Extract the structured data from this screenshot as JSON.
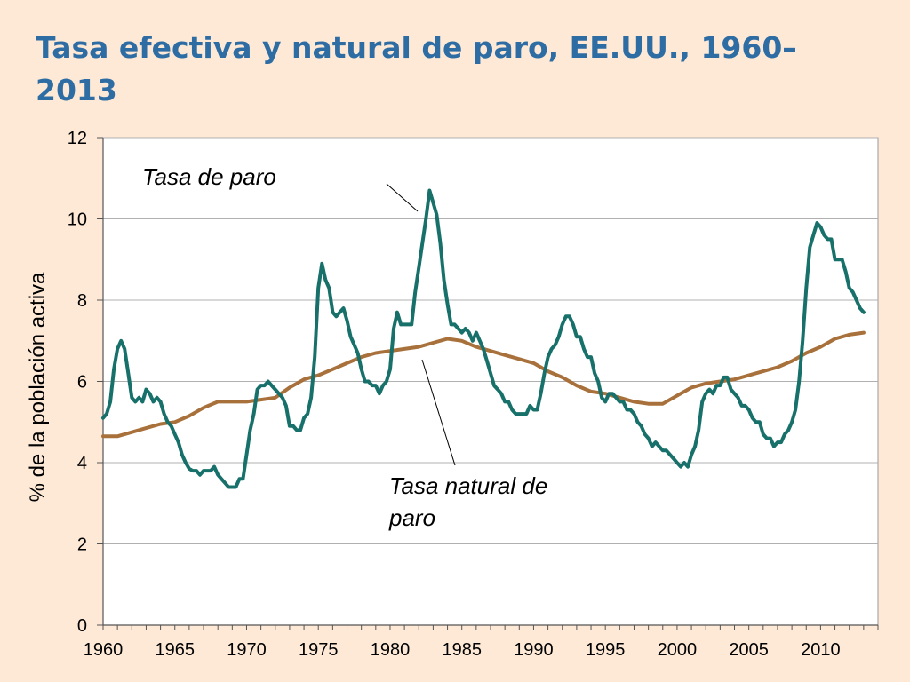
{
  "slide": {
    "title": "Tasa efectiva y natural de paro, EE.UU., 1960–2013"
  },
  "chart_data": {
    "type": "line",
    "title": "Tasa efectiva y natural de paro, EE.UU., 1960–2013",
    "ylabel": "% de la población activa",
    "xlabel": "",
    "xlim": [
      1960,
      2014
    ],
    "ylim": [
      0,
      12
    ],
    "xticks": [
      1960,
      1965,
      1970,
      1975,
      1980,
      1985,
      1990,
      1995,
      2000,
      2005,
      2010
    ],
    "yticks": [
      0,
      2,
      4,
      6,
      8,
      10,
      12
    ],
    "grid": "horizontal",
    "legend": "none",
    "colors": {
      "actual": "#17706a",
      "natural": "#a8703a",
      "grid": "#b0b0b0"
    },
    "annotations": [
      {
        "text": "Tasa de paro",
        "series": "actual"
      },
      {
        "text": "Tasa natural de paro",
        "lines": [
          "Tasa natural de",
          "paro"
        ],
        "series": "natural"
      }
    ],
    "series": [
      {
        "id": "actual",
        "name": "Tasa de paro",
        "x": [
          1960.0,
          1960.25,
          1960.5,
          1960.75,
          1961.0,
          1961.25,
          1961.5,
          1961.75,
          1962.0,
          1962.25,
          1962.5,
          1962.75,
          1963.0,
          1963.25,
          1963.5,
          1963.75,
          1964.0,
          1964.25,
          1964.5,
          1964.75,
          1965.0,
          1965.25,
          1965.5,
          1965.75,
          1966.0,
          1966.25,
          1966.5,
          1966.75,
          1967.0,
          1967.25,
          1967.5,
          1967.75,
          1968.0,
          1968.25,
          1968.5,
          1968.75,
          1969.0,
          1969.25,
          1969.5,
          1969.75,
          1970.0,
          1970.25,
          1970.5,
          1970.75,
          1971.0,
          1971.25,
          1971.5,
          1971.75,
          1972.0,
          1972.25,
          1972.5,
          1972.75,
          1973.0,
          1973.25,
          1973.5,
          1973.75,
          1974.0,
          1974.25,
          1974.5,
          1974.75,
          1975.0,
          1975.25,
          1975.5,
          1975.75,
          1976.0,
          1976.25,
          1976.5,
          1976.75,
          1977.0,
          1977.25,
          1977.5,
          1977.75,
          1978.0,
          1978.25,
          1978.5,
          1978.75,
          1979.0,
          1979.25,
          1979.5,
          1979.75,
          1980.0,
          1980.25,
          1980.5,
          1980.75,
          1981.0,
          1981.25,
          1981.5,
          1981.75,
          1982.0,
          1982.25,
          1982.5,
          1982.75,
          1983.0,
          1983.25,
          1983.5,
          1983.75,
          1984.0,
          1984.25,
          1984.5,
          1984.75,
          1985.0,
          1985.25,
          1985.5,
          1985.75,
          1986.0,
          1986.25,
          1986.5,
          1986.75,
          1987.0,
          1987.25,
          1987.5,
          1987.75,
          1988.0,
          1988.25,
          1988.5,
          1988.75,
          1989.0,
          1989.25,
          1989.5,
          1989.75,
          1990.0,
          1990.25,
          1990.5,
          1990.75,
          1991.0,
          1991.25,
          1991.5,
          1991.75,
          1992.0,
          1992.25,
          1992.5,
          1992.75,
          1993.0,
          1993.25,
          1993.5,
          1993.75,
          1994.0,
          1994.25,
          1994.5,
          1994.75,
          1995.0,
          1995.25,
          1995.5,
          1995.75,
          1996.0,
          1996.25,
          1996.5,
          1996.75,
          1997.0,
          1997.25,
          1997.5,
          1997.75,
          1998.0,
          1998.25,
          1998.5,
          1998.75,
          1999.0,
          1999.25,
          1999.5,
          1999.75,
          2000.0,
          2000.25,
          2000.5,
          2000.75,
          2001.0,
          2001.25,
          2001.5,
          2001.75,
          2002.0,
          2002.25,
          2002.5,
          2002.75,
          2003.0,
          2003.25,
          2003.5,
          2003.75,
          2004.0,
          2004.25,
          2004.5,
          2004.75,
          2005.0,
          2005.25,
          2005.5,
          2005.75,
          2006.0,
          2006.25,
          2006.5,
          2006.75,
          2007.0,
          2007.25,
          2007.5,
          2007.75,
          2008.0,
          2008.25,
          2008.5,
          2008.75,
          2009.0,
          2009.25,
          2009.5,
          2009.75,
          2010.0,
          2010.25,
          2010.5,
          2010.75,
          2011.0,
          2011.25,
          2011.5,
          2011.75,
          2012.0,
          2012.25,
          2012.5,
          2012.75,
          2013.0
        ],
        "values": [
          5.1,
          5.2,
          5.5,
          6.3,
          6.8,
          7.0,
          6.8,
          6.2,
          5.6,
          5.5,
          5.6,
          5.5,
          5.8,
          5.7,
          5.5,
          5.6,
          5.5,
          5.2,
          5.0,
          4.9,
          4.7,
          4.5,
          4.2,
          4.0,
          3.85,
          3.8,
          3.8,
          3.7,
          3.8,
          3.8,
          3.8,
          3.9,
          3.7,
          3.6,
          3.5,
          3.4,
          3.4,
          3.4,
          3.6,
          3.6,
          4.2,
          4.8,
          5.2,
          5.8,
          5.9,
          5.9,
          6.0,
          5.9,
          5.8,
          5.7,
          5.6,
          5.4,
          4.9,
          4.9,
          4.8,
          4.8,
          5.1,
          5.2,
          5.6,
          6.6,
          8.3,
          8.9,
          8.5,
          8.3,
          7.7,
          7.6,
          7.7,
          7.8,
          7.5,
          7.1,
          6.9,
          6.7,
          6.3,
          6.0,
          6.0,
          5.9,
          5.9,
          5.7,
          5.9,
          6.0,
          6.3,
          7.3,
          7.7,
          7.4,
          7.4,
          7.4,
          7.4,
          8.2,
          8.8,
          9.4,
          10.0,
          10.7,
          10.4,
          10.1,
          9.4,
          8.5,
          7.9,
          7.4,
          7.4,
          7.3,
          7.2,
          7.3,
          7.2,
          7.0,
          7.2,
          7.0,
          6.8,
          6.5,
          6.2,
          5.9,
          5.8,
          5.7,
          5.5,
          5.5,
          5.3,
          5.2,
          5.2,
          5.2,
          5.2,
          5.4,
          5.3,
          5.3,
          5.7,
          6.2,
          6.6,
          6.8,
          6.9,
          7.1,
          7.4,
          7.6,
          7.6,
          7.4,
          7.1,
          7.1,
          6.8,
          6.6,
          6.6,
          6.2,
          6.0,
          5.6,
          5.5,
          5.7,
          5.7,
          5.6,
          5.5,
          5.5,
          5.3,
          5.3,
          5.2,
          5.0,
          4.9,
          4.7,
          4.6,
          4.4,
          4.5,
          4.4,
          4.3,
          4.3,
          4.2,
          4.1,
          4.0,
          3.9,
          4.0,
          3.9,
          4.2,
          4.4,
          4.8,
          5.5,
          5.7,
          5.8,
          5.7,
          5.9,
          5.9,
          6.1,
          6.1,
          5.8,
          5.7,
          5.6,
          5.4,
          5.4,
          5.3,
          5.1,
          5.0,
          5.0,
          4.7,
          4.6,
          4.6,
          4.4,
          4.5,
          4.5,
          4.7,
          4.8,
          5.0,
          5.3,
          6.0,
          7.0,
          8.3,
          9.3,
          9.6,
          9.9,
          9.8,
          9.6,
          9.5,
          9.5,
          9.0,
          9.0,
          9.0,
          8.7,
          8.3,
          8.2,
          8.0,
          7.8,
          7.7
        ]
      },
      {
        "id": "natural",
        "name": "Tasa natural de paro",
        "x": [
          1960,
          1961,
          1962,
          1963,
          1964,
          1965,
          1966,
          1967,
          1968,
          1969,
          1970,
          1971,
          1972,
          1973,
          1974,
          1975,
          1976,
          1977,
          1978,
          1979,
          1980,
          1981,
          1982,
          1983,
          1984,
          1985,
          1986,
          1987,
          1988,
          1989,
          1990,
          1991,
          1992,
          1993,
          1994,
          1995,
          1996,
          1997,
          1998,
          1999,
          2000,
          2001,
          2002,
          2003,
          2004,
          2005,
          2006,
          2007,
          2008,
          2009,
          2010,
          2011,
          2012,
          2013
        ],
        "values": [
          4.65,
          4.65,
          4.75,
          4.85,
          4.95,
          5.0,
          5.15,
          5.35,
          5.5,
          5.5,
          5.5,
          5.55,
          5.6,
          5.85,
          6.05,
          6.15,
          6.3,
          6.45,
          6.6,
          6.7,
          6.75,
          6.8,
          6.85,
          6.95,
          7.05,
          7.0,
          6.85,
          6.75,
          6.65,
          6.55,
          6.45,
          6.25,
          6.1,
          5.9,
          5.75,
          5.7,
          5.6,
          5.5,
          5.45,
          5.45,
          5.65,
          5.85,
          5.95,
          6.0,
          6.05,
          6.15,
          6.25,
          6.35,
          6.5,
          6.7,
          6.85,
          7.05,
          7.15,
          7.2
        ]
      }
    ]
  }
}
